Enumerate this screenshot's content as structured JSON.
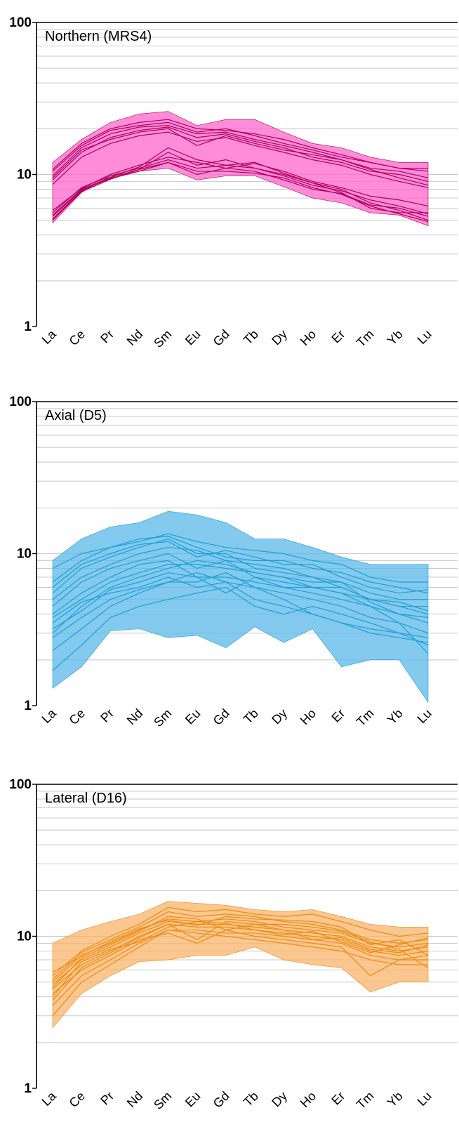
{
  "chart_data": [
    {
      "type": "line",
      "title": "Northern (MRS4)",
      "x": [
        "La",
        "Ce",
        "Pr",
        "Nd",
        "Sm",
        "Eu",
        "Gd",
        "Tb",
        "Dy",
        "Ho",
        "Er",
        "Tm",
        "Yb",
        "Lu"
      ],
      "y_scale": "log",
      "ylim": [
        1,
        100
      ],
      "y_ticks": [
        "1",
        "10",
        "100"
      ],
      "grid": "horizontal",
      "color": "#b0005e",
      "band_color": "#ff66cc",
      "band_upper": [
        12.0,
        17.0,
        22.0,
        25.0,
        26.0,
        21.0,
        23.0,
        23.0,
        19.0,
        16.0,
        15.0,
        13.0,
        12.0,
        12.0
      ],
      "band_lower": [
        4.8,
        7.6,
        9.8,
        10.5,
        11.0,
        9.2,
        9.8,
        9.8,
        8.3,
        7.0,
        6.5,
        5.6,
        5.4,
        4.6
      ],
      "series": [
        {
          "values": [
            10.5,
            15.5,
            19.5,
            21.0,
            22.0,
            19.0,
            20.0,
            18.0,
            16.0,
            14.5,
            13.0,
            12.0,
            11.0,
            10.5
          ]
        },
        {
          "values": [
            9.8,
            15.0,
            18.5,
            20.5,
            21.0,
            18.5,
            19.0,
            17.0,
            15.5,
            14.0,
            12.5,
            11.0,
            10.5,
            9.5
          ]
        },
        {
          "values": [
            9.2,
            14.0,
            17.5,
            19.5,
            20.5,
            17.5,
            18.5,
            16.5,
            15.0,
            13.0,
            12.0,
            10.5,
            10.0,
            9.0
          ]
        },
        {
          "values": [
            8.6,
            13.0,
            16.0,
            18.0,
            19.0,
            16.5,
            17.5,
            15.5,
            14.0,
            12.5,
            11.5,
            10.0,
            9.0,
            8.2
          ]
        },
        {
          "values": [
            10.8,
            16.0,
            20.0,
            22.0,
            23.0,
            20.0,
            19.5,
            18.5,
            17.0,
            15.0,
            13.5,
            12.0,
            11.0,
            11.0
          ]
        },
        {
          "values": [
            9.5,
            14.5,
            17.0,
            19.0,
            20.0,
            15.5,
            18.0,
            16.0,
            14.5,
            13.5,
            12.5,
            10.8,
            9.5,
            8.5
          ]
        },
        {
          "values": [
            5.6,
            8.2,
            9.8,
            11.0,
            12.5,
            11.0,
            11.5,
            11.0,
            9.8,
            8.5,
            7.8,
            6.8,
            6.2,
            5.5
          ]
        },
        {
          "values": [
            5.3,
            7.9,
            9.4,
            10.5,
            12.0,
            10.0,
            11.0,
            10.5,
            9.2,
            8.0,
            7.5,
            6.3,
            6.0,
            5.3
          ]
        },
        {
          "values": [
            5.0,
            7.7,
            9.3,
            10.8,
            14.0,
            11.5,
            12.5,
            11.0,
            10.0,
            8.8,
            8.0,
            6.5,
            5.8,
            5.0
          ]
        },
        {
          "values": [
            5.8,
            8.1,
            10.0,
            11.5,
            13.0,
            12.0,
            11.0,
            11.8,
            10.5,
            9.0,
            8.2,
            7.2,
            6.8,
            6.2
          ]
        },
        {
          "values": [
            5.4,
            8.0,
            9.6,
            11.2,
            15.0,
            12.5,
            11.5,
            12.0,
            10.2,
            8.8,
            7.6,
            6.0,
            5.6,
            5.6
          ]
        },
        {
          "values": [
            5.1,
            7.8,
            9.5,
            10.8,
            12.0,
            10.5,
            10.5,
            10.2,
            9.5,
            8.2,
            7.4,
            6.2,
            5.5,
            4.9
          ]
        }
      ]
    },
    {
      "type": "line",
      "title": "Axial (D5)",
      "x": [
        "La",
        "Ce",
        "Pr",
        "Nd",
        "Sm",
        "Eu",
        "Gd",
        "Tb",
        "Dy",
        "Ho",
        "Er",
        "Tm",
        "Yb",
        "Lu"
      ],
      "y_scale": "log",
      "ylim": [
        1,
        100
      ],
      "y_ticks": [
        "1",
        "10",
        "100"
      ],
      "grid": "horizontal",
      "color": "#1c9fd8",
      "band_color": "#5ab8e8",
      "band_upper": [
        9.0,
        12.5,
        15.0,
        16.0,
        19.0,
        18.0,
        16.0,
        12.5,
        12.5,
        11.0,
        9.5,
        8.5,
        8.5,
        8.5
      ],
      "band_lower": [
        1.3,
        1.8,
        3.1,
        3.2,
        2.8,
        2.9,
        2.4,
        3.3,
        2.6,
        3.2,
        1.8,
        2.0,
        2.0,
        1.05
      ],
      "series": [
        {
          "values": [
            6.5,
            9.0,
            11.0,
            12.5,
            13.0,
            11.0,
            9.5,
            9.0,
            9.0,
            8.0,
            7.5,
            6.5,
            6.0,
            5.5
          ]
        },
        {
          "values": [
            5.5,
            8.0,
            9.5,
            11.0,
            12.5,
            10.0,
            10.0,
            8.0,
            7.5,
            7.0,
            6.5,
            5.5,
            5.0,
            5.0
          ]
        },
        {
          "values": [
            3.0,
            4.5,
            6.0,
            7.0,
            8.0,
            9.0,
            8.5,
            7.5,
            7.0,
            6.0,
            6.0,
            5.0,
            4.5,
            4.0
          ]
        },
        {
          "values": [
            2.3,
            3.2,
            4.5,
            5.5,
            6.5,
            7.5,
            6.5,
            5.0,
            4.5,
            4.0,
            3.5,
            3.0,
            2.8,
            2.6
          ]
        },
        {
          "values": [
            1.7,
            2.5,
            3.8,
            4.5,
            5.0,
            5.5,
            6.0,
            4.5,
            4.0,
            4.5,
            4.0,
            3.5,
            3.0,
            2.5
          ]
        },
        {
          "values": [
            8.0,
            10.0,
            11.0,
            12.0,
            13.5,
            12.0,
            11.0,
            10.5,
            10.0,
            9.0,
            8.5,
            7.0,
            6.5,
            6.5
          ]
        },
        {
          "values": [
            4.5,
            6.5,
            8.0,
            9.0,
            10.0,
            8.0,
            9.0,
            7.0,
            6.5,
            6.0,
            5.5,
            5.0,
            4.5,
            4.5
          ]
        },
        {
          "values": [
            4.0,
            5.5,
            7.0,
            8.5,
            9.0,
            7.0,
            5.5,
            7.0,
            6.0,
            5.5,
            5.0,
            4.5,
            4.0,
            3.5
          ]
        },
        {
          "values": [
            3.5,
            4.8,
            5.5,
            6.0,
            7.0,
            6.0,
            6.5,
            6.0,
            5.5,
            5.0,
            4.5,
            3.8,
            3.5,
            3.0
          ]
        },
        {
          "values": [
            5.0,
            7.0,
            8.5,
            10.0,
            11.0,
            10.5,
            9.0,
            8.5,
            8.0,
            7.0,
            6.0,
            5.0,
            4.8,
            4.2
          ]
        },
        {
          "values": [
            2.8,
            3.8,
            5.0,
            5.8,
            6.5,
            6.5,
            7.5,
            6.0,
            5.0,
            4.0,
            3.5,
            3.2,
            3.0,
            2.8
          ]
        },
        {
          "values": [
            3.2,
            4.2,
            5.8,
            6.5,
            7.5,
            7.0,
            7.0,
            6.5,
            6.0,
            6.0,
            5.5,
            4.5,
            3.5,
            2.2
          ]
        },
        {
          "values": [
            6.0,
            8.5,
            10.0,
            11.5,
            12.0,
            9.5,
            10.5,
            9.5,
            8.5,
            8.5,
            7.0,
            6.0,
            5.5,
            5.8
          ]
        },
        {
          "values": [
            3.8,
            5.0,
            6.5,
            7.5,
            8.5,
            8.5,
            8.0,
            7.5,
            7.0,
            6.5,
            6.5,
            4.8,
            4.0,
            3.8
          ]
        }
      ]
    },
    {
      "type": "line",
      "title": "Lateral (D16)",
      "x": [
        "La",
        "Ce",
        "Pr",
        "Nd",
        "Sm",
        "Eu",
        "Gd",
        "Tb",
        "Dy",
        "Ho",
        "Er",
        "Tm",
        "Yb",
        "Lu"
      ],
      "y_scale": "log",
      "ylim": [
        1,
        100
      ],
      "y_ticks": [
        "1",
        "10",
        "100"
      ],
      "grid": "horizontal",
      "color": "#f08a10",
      "band_color": "#f7b46a",
      "band_upper": [
        9.0,
        11.0,
        12.5,
        14.0,
        17.0,
        16.5,
        16.0,
        15.0,
        14.5,
        15.0,
        13.5,
        12.0,
        11.5,
        11.5
      ],
      "band_lower": [
        2.5,
        4.2,
        5.5,
        6.8,
        7.0,
        7.5,
        7.5,
        8.5,
        7.0,
        6.5,
        6.2,
        4.3,
        5.0,
        5.0
      ],
      "series": [
        {
          "values": [
            5.0,
            7.5,
            9.0,
            11.0,
            13.0,
            12.5,
            13.0,
            12.5,
            11.5,
            11.0,
            10.5,
            9.0,
            8.5,
            9.0
          ]
        },
        {
          "values": [
            4.8,
            7.0,
            8.5,
            10.5,
            12.5,
            12.0,
            12.0,
            11.5,
            11.0,
            10.5,
            10.0,
            8.5,
            8.0,
            8.5
          ]
        },
        {
          "values": [
            4.5,
            6.5,
            8.0,
            10.0,
            12.0,
            11.5,
            11.5,
            11.0,
            10.5,
            10.0,
            9.5,
            8.0,
            7.5,
            8.0
          ]
        },
        {
          "values": [
            3.5,
            5.5,
            7.0,
            9.0,
            11.0,
            11.0,
            10.5,
            10.5,
            10.0,
            9.5,
            9.0,
            7.5,
            7.0,
            7.5
          ]
        },
        {
          "values": [
            5.2,
            7.8,
            9.5,
            11.5,
            14.5,
            13.5,
            14.0,
            13.5,
            12.5,
            12.0,
            11.0,
            9.5,
            9.0,
            9.5
          ]
        },
        {
          "values": [
            3.0,
            5.0,
            6.5,
            8.5,
            11.0,
            10.5,
            10.0,
            9.5,
            9.0,
            8.5,
            8.0,
            7.0,
            6.5,
            6.5
          ]
        },
        {
          "values": [
            4.2,
            6.0,
            7.5,
            9.5,
            10.5,
            9.0,
            11.0,
            10.0,
            9.5,
            9.0,
            8.5,
            5.5,
            7.0,
            7.0
          ]
        },
        {
          "values": [
            5.5,
            8.0,
            10.0,
            12.0,
            15.5,
            14.5,
            15.0,
            14.0,
            13.5,
            14.0,
            12.5,
            11.0,
            10.0,
            10.5
          ]
        },
        {
          "values": [
            3.8,
            6.2,
            7.8,
            9.8,
            12.0,
            9.5,
            12.5,
            12.0,
            11.0,
            9.5,
            9.8,
            8.2,
            7.8,
            8.8
          ]
        },
        {
          "values": [
            4.6,
            7.2,
            8.8,
            10.8,
            13.5,
            13.0,
            11.0,
            12.0,
            12.0,
            11.5,
            10.8,
            9.2,
            8.2,
            6.2
          ]
        },
        {
          "values": [
            4.0,
            6.8,
            8.2,
            9.2,
            11.5,
            12.5,
            12.2,
            11.0,
            10.2,
            10.8,
            9.2,
            7.8,
            8.8,
            9.8
          ]
        },
        {
          "values": [
            5.8,
            7.4,
            9.2,
            11.2,
            12.8,
            11.8,
            13.5,
            13.0,
            12.8,
            12.5,
            11.5,
            8.8,
            9.5,
            7.5
          ]
        }
      ]
    }
  ]
}
